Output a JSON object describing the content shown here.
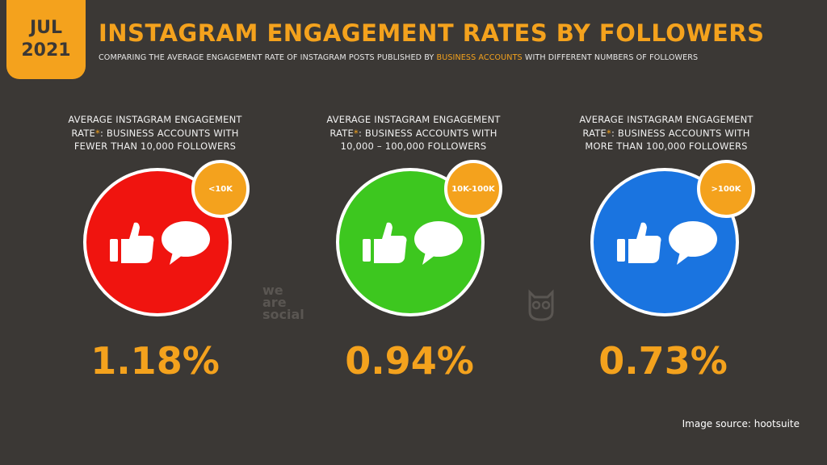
{
  "badge": {
    "month": "JUL",
    "year": "2021"
  },
  "header": {
    "title": "INSTAGRAM ENGAGEMENT RATES BY FOLLOWERS",
    "subtitle_pre": "COMPARING THE AVERAGE ENGAGEMENT RATE OF INSTAGRAM POSTS PUBLISHED BY ",
    "subtitle_highlight": "BUSINESS ACCOUNTS",
    "subtitle_post": " WITH DIFFERENT NUMBERS OF FOLLOWERS"
  },
  "panels": [
    {
      "caption_line1": "AVERAGE INSTAGRAM ENGAGEMENT",
      "caption_line2a": "RATE",
      "caption_star": "*",
      "caption_line2b": ": BUSINESS ACCOUNTS WITH",
      "caption_line3": "FEWER THAN 10,000 FOLLOWERS",
      "badge_label": "<10K",
      "value": "1.18%"
    },
    {
      "caption_line1": "AVERAGE INSTAGRAM ENGAGEMENT",
      "caption_line2a": "RATE",
      "caption_star": "*",
      "caption_line2b": ": BUSINESS ACCOUNTS WITH",
      "caption_line3": "10,000 – 100,000 FOLLOWERS",
      "badge_label": "10K-100K",
      "value": "0.94%"
    },
    {
      "caption_line1": "AVERAGE INSTAGRAM ENGAGEMENT",
      "caption_line2a": "RATE",
      "caption_star": "*",
      "caption_line2b": ": BUSINESS ACCOUNTS WITH",
      "caption_line3": "MORE THAN 100,000 FOLLOWERS",
      "badge_label": ">100K",
      "value": "0.73%"
    }
  ],
  "colors": {
    "accent": "#f4a21d",
    "background": "#3b3835",
    "red": "#f0140f",
    "green": "#3dc71f",
    "blue": "#1a74e0"
  },
  "icons": [
    "thumbs-up-icon",
    "speech-bubble-icon",
    "hootsuite-owl-icon"
  ],
  "logo": {
    "line1": "we",
    "line2": "are",
    "line3": "social"
  },
  "footer": {
    "source": "Image source: hootsuite"
  }
}
